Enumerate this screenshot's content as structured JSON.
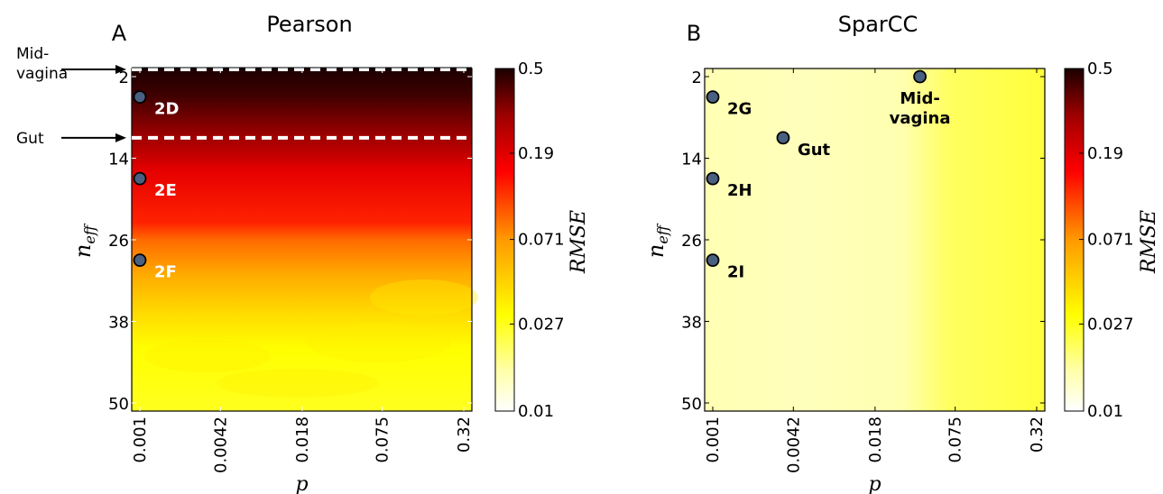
{
  "chart_data": [
    {
      "type": "heatmap",
      "panel_letter": "A",
      "title": "Pearson",
      "xlabel": "p",
      "ylabel": "n",
      "ylabel_subscript": "eff",
      "x_ticks": [
        "0.001",
        "0.0042",
        "0.018",
        "0.075",
        "0.32"
      ],
      "y_ticks": [
        "2",
        "14",
        "26",
        "38",
        "50"
      ],
      "xlim": [
        0.001,
        0.32
      ],
      "ylim": [
        50,
        2
      ],
      "x_scale": "log",
      "colorbar": {
        "label": "RMSE",
        "scale": "log",
        "range": [
          0.01,
          0.5
        ],
        "ticks": [
          "0.5",
          "0.19",
          "0.071",
          "0.027",
          "0.01"
        ],
        "colors": [
          "#ffffff",
          "#ffff6a",
          "#ffff00",
          "#ff8800",
          "#ff0000",
          "#b00000",
          "#1a0000"
        ]
      },
      "points": [
        {
          "label": "2D",
          "p": 0.001,
          "n_eff": 5
        },
        {
          "label": "2E",
          "p": 0.001,
          "n_eff": 17
        },
        {
          "label": "2F",
          "p": 0.001,
          "n_eff": 29
        }
      ],
      "reference_lines": [
        {
          "label": "Mid-\nvagina",
          "n_eff": 2
        },
        {
          "label": "Gut",
          "n_eff": 11
        }
      ]
    },
    {
      "type": "heatmap",
      "panel_letter": "B",
      "title": "SparCC",
      "xlabel": "p",
      "ylabel": "n",
      "ylabel_subscript": "eff",
      "x_ticks": [
        "0.001",
        "0.0042",
        "0.018",
        "0.075",
        "0.32"
      ],
      "y_ticks": [
        "2",
        "14",
        "26",
        "38",
        "50"
      ],
      "xlim": [
        0.001,
        0.32
      ],
      "ylim": [
        50,
        2
      ],
      "x_scale": "log",
      "colorbar": {
        "label": "RMSE",
        "scale": "log",
        "range": [
          0.01,
          0.5
        ],
        "ticks": [
          "0.5",
          "0.19",
          "0.071",
          "0.027",
          "0.01"
        ],
        "colors": [
          "#ffffff",
          "#ffff6a",
          "#ffff00",
          "#ff8800",
          "#ff0000",
          "#b00000",
          "#1a0000"
        ]
      },
      "points": [
        {
          "label": "2G",
          "p": 0.001,
          "n_eff": 5
        },
        {
          "label": "Gut",
          "p": 0.0035,
          "n_eff": 11
        },
        {
          "label": "2H",
          "p": 0.001,
          "n_eff": 17
        },
        {
          "label": "2I",
          "p": 0.001,
          "n_eff": 29
        },
        {
          "label": "Mid-\nvagina",
          "p": 0.04,
          "n_eff": 2
        }
      ]
    }
  ]
}
